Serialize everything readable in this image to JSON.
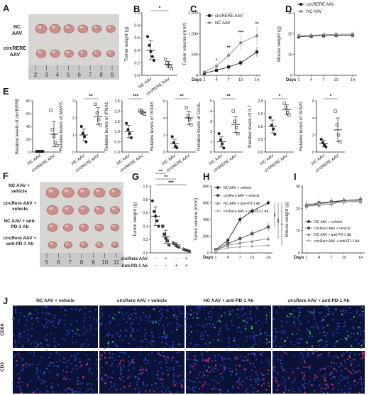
{
  "panels": {
    "A": {
      "letter": "A",
      "rows": [
        "NC AAV",
        "circRERE AAV"
      ],
      "ruler": [
        "2",
        "3",
        "4",
        "5",
        "6",
        "7",
        "8",
        "9"
      ]
    },
    "F": {
      "letter": "F",
      "rows": [
        "NC AAV + vehicle",
        "circRere AAV + vehicle",
        "NC AAV + anti-PD-1 Ab",
        "circRere AAV + anti-PD-1 Ab"
      ],
      "ruler": [
        "5",
        "6",
        "7",
        "8",
        "9",
        "10",
        "11"
      ]
    },
    "J": {
      "letter": "J",
      "columns": [
        "NC AAV + vehicle",
        "circRere AAV + vehicle",
        "NC AAV + anti-PD-1 Ab",
        "circRere AAV + anti-PD-1 Ab"
      ],
      "rows": [
        "CD8A",
        "CD3"
      ]
    }
  },
  "chart_data": [
    {
      "id": "B",
      "letter": "B",
      "type": "scatter",
      "ylabel": "Tumor weight (g)",
      "categories": [
        "NC AAV",
        "circRERE AAV"
      ],
      "ylim": [
        0,
        1.0
      ],
      "yticks": [
        "0.0",
        "0.2",
        "0.4",
        "0.6",
        "0.8",
        "1.0"
      ],
      "points": [
        [
          0.62,
          0.48,
          0.38,
          0.3,
          0.24
        ],
        [
          0.26,
          0.2,
          0.16,
          0.14,
          0.11
        ]
      ],
      "means": [
        0.4,
        0.17
      ],
      "sd": [
        0.15,
        0.05
      ],
      "sig": "*"
    },
    {
      "id": "C",
      "letter": "C",
      "type": "line",
      "ylabel": "Tumor volume (mm³)",
      "xlabel": "Days",
      "x": [
        1,
        4,
        7,
        10,
        14
      ],
      "xticks": [
        "1",
        "4",
        "7",
        "10",
        "14"
      ],
      "ylim": [
        0,
        1500
      ],
      "yticks": [
        "0",
        "500",
        "1,000",
        "1,500"
      ],
      "series": [
        {
          "name": "circRERE AAV",
          "values": [
            50,
            120,
            200,
            300,
            560
          ],
          "err": [
            20,
            40,
            60,
            80,
            120
          ],
          "marker": "square",
          "color": "#222222"
        },
        {
          "name": "NC AAV",
          "values": [
            80,
            220,
            480,
            780,
            950
          ],
          "err": [
            30,
            70,
            120,
            180,
            220
          ],
          "marker": "circle",
          "color": "#888888"
        }
      ],
      "sig": [
        "*",
        "**",
        "***",
        "**"
      ]
    },
    {
      "id": "D",
      "letter": "D",
      "type": "line",
      "ylabel": "Mouse weight (g)",
      "xlabel": "Days",
      "x": [
        1,
        4,
        7,
        10,
        14
      ],
      "xticks": [
        "1",
        "4",
        "7",
        "10",
        "14"
      ],
      "ylim": [
        0,
        30
      ],
      "yticks": [
        "0",
        "10",
        "20",
        "30"
      ],
      "series": [
        {
          "name": "circRERE AAV",
          "values": [
            18.5,
            18.8,
            19.0,
            19.2,
            19.3
          ],
          "err": [
            1.2,
            1.2,
            1.2,
            1.2,
            1.2
          ],
          "marker": "square",
          "color": "#222222"
        },
        {
          "name": "NC AAV",
          "values": [
            19.0,
            19.2,
            19.5,
            19.7,
            19.8
          ],
          "err": [
            1.2,
            1.2,
            1.2,
            1.2,
            1.2
          ],
          "marker": "circle",
          "color": "#888888"
        }
      ]
    },
    {
      "id": "E1",
      "letter": "E",
      "type": "scatter",
      "ylabel": "Relative levels of circRERE",
      "categories": [
        "NC AAV",
        "circRERE AAV"
      ],
      "ylim": [
        0,
        80
      ],
      "yticks": [
        "0",
        "20",
        "40",
        "60",
        "80"
      ],
      "points": [
        [
          1,
          1,
          1,
          1,
          1
        ],
        [
          65,
          35,
          25,
          15,
          10
        ]
      ],
      "means": [
        1,
        28
      ],
      "sd": [
        0.2,
        20
      ],
      "sig": ""
    },
    {
      "id": "E2",
      "type": "scatter",
      "ylabel": "Relative levels of MAVS",
      "categories": [
        "NC AAV",
        "circRERE AAV"
      ],
      "ylim": [
        0,
        3
      ],
      "yticks": [
        "0",
        "1",
        "2",
        "3"
      ],
      "points": [
        [
          1.5,
          1.1,
          0.9,
          0.6
        ],
        [
          2.8,
          2.3,
          1.9,
          1.6
        ]
      ],
      "means": [
        1.0,
        2.1
      ],
      "sd": [
        0.35,
        0.5
      ],
      "sig": "**"
    },
    {
      "id": "E3",
      "type": "scatter",
      "ylabel": "Relative levels of IFNA1",
      "categories": [
        "NC AAV",
        "circRERE AAV"
      ],
      "ylim": [
        0,
        2.5
      ],
      "yticks": [
        "0.0",
        "0.5",
        "1.0",
        "1.5",
        "2.0",
        "2.5"
      ],
      "points": [
        [
          1.4,
          1.1,
          0.9,
          0.7
        ],
        [
          2.05,
          1.95,
          1.9,
          1.85
        ]
      ],
      "means": [
        1.0,
        1.95
      ],
      "sd": [
        0.3,
        0.1
      ],
      "sig": "***"
    },
    {
      "id": "E4",
      "type": "scatter",
      "ylabel": "Relative levels of ISG15",
      "categories": [
        "NC AAV",
        "circRERE AAV"
      ],
      "ylim": [
        0,
        6
      ],
      "yticks": [
        "0",
        "2",
        "4",
        "6"
      ],
      "points": [
        [
          1.8,
          1.1,
          0.7,
          0.5
        ],
        [
          5.2,
          4.2,
          3.8,
          3.2
        ]
      ],
      "means": [
        1.0,
        4.0
      ],
      "sd": [
        0.5,
        0.8
      ],
      "sig": "**"
    },
    {
      "id": "E5",
      "type": "scatter",
      "ylabel": "Relative levels of OASL",
      "categories": [
        "NC AAV",
        "circRERE AAV"
      ],
      "ylim": [
        0,
        5
      ],
      "yticks": [
        "0",
        "1",
        "2",
        "3",
        "4",
        "5"
      ],
      "points": [
        [
          1.8,
          1.2,
          0.8,
          0.4
        ],
        [
          4.0,
          3.0,
          2.4,
          1.8
        ]
      ],
      "means": [
        1.0,
        2.7
      ],
      "sd": [
        0.5,
        0.8
      ],
      "sig": "**"
    },
    {
      "id": "E6",
      "type": "scatter",
      "ylabel": "Relative levels of IL7",
      "categories": [
        "NC AAV",
        "circRERE AAV"
      ],
      "ylim": [
        0,
        2.0
      ],
      "yticks": [
        "0.0",
        "0.5",
        "1.0",
        "1.5",
        "2.0"
      ],
      "points": [
        [
          1.35,
          1.05,
          0.9,
          0.7
        ],
        [
          1.9,
          1.75,
          1.55,
          1.45
        ]
      ],
      "means": [
        1.0,
        1.65
      ],
      "sd": [
        0.25,
        0.2
      ],
      "sig": "*"
    },
    {
      "id": "E7",
      "type": "scatter",
      "ylabel": "Relative levels of ISG20",
      "categories": [
        "NC AAV",
        "circRERE AAV"
      ],
      "ylim": [
        0,
        6
      ],
      "yticks": [
        "0",
        "2",
        "4",
        "6"
      ],
      "points": [
        [
          1.5,
          1.1,
          0.8,
          0.6
        ],
        [
          4.8,
          3.2,
          2.0,
          1.2
        ]
      ],
      "means": [
        1.0,
        2.6
      ],
      "sd": [
        0.4,
        1.4
      ],
      "sig": "*"
    },
    {
      "id": "G",
      "letter": "G",
      "type": "scatter",
      "ylabel": "Tumor weight (g)",
      "ylim": [
        0,
        1.0
      ],
      "yticks": [
        "0.0",
        "0.2",
        "0.4",
        "0.6",
        "0.8",
        "1.0"
      ],
      "row_labels": [
        "circRere AAV",
        "Anti-PD-1 Ab"
      ],
      "row_values": [
        [
          "-",
          "+",
          "-",
          "+"
        ],
        [
          "-",
          "-",
          "+",
          "+"
        ]
      ],
      "points": [
        [
          0.78,
          0.62,
          0.55,
          0.48,
          0.4
        ],
        [
          0.4,
          0.28,
          0.22,
          0.18,
          0.12
        ],
        [
          0.16,
          0.14,
          0.12,
          0.1,
          0.09
        ],
        [
          0.06,
          0.05,
          0.04,
          0.03,
          0.02
        ]
      ],
      "means": [
        0.55,
        0.24,
        0.12,
        0.04
      ],
      "sd": [
        0.14,
        0.1,
        0.03,
        0.015
      ],
      "sig": [
        "**",
        "**",
        "***"
      ]
    },
    {
      "id": "H",
      "letter": "H",
      "type": "line",
      "ylabel": "Tumor volume (mm³)",
      "xlabel": "Days",
      "x": [
        1,
        4,
        7,
        10,
        14
      ],
      "xticks": [
        "1",
        "4",
        "7",
        "10",
        "14"
      ],
      "ylim": [
        0,
        800
      ],
      "yticks": [
        "0",
        "200",
        "400",
        "600",
        "800"
      ],
      "series": [
        {
          "name": "NC AAV + vehicle",
          "values": [
            40,
            150,
            400,
            500,
            600
          ],
          "err": [
            10,
            30,
            50,
            40,
            30
          ],
          "marker": "circle",
          "color": "#222222"
        },
        {
          "name": "circRere AAV + vehicle",
          "values": [
            35,
            110,
            170,
            230,
            310
          ],
          "err": [
            10,
            20,
            30,
            40,
            60
          ],
          "marker": "square",
          "color": "#555555"
        },
        {
          "name": "NC AAV + anti-PD-1 Ab",
          "values": [
            30,
            90,
            120,
            140,
            170
          ],
          "err": [
            8,
            15,
            20,
            25,
            30
          ],
          "marker": "triangle",
          "color": "#888888"
        },
        {
          "name": "circRere AAV + anti-PD-1 Ab",
          "values": [
            25,
            60,
            70,
            80,
            90
          ],
          "err": [
            6,
            10,
            12,
            15,
            18
          ],
          "marker": "diamond",
          "color": "#aaaaaa"
        }
      ],
      "sig": [
        "**",
        "***",
        "*"
      ]
    },
    {
      "id": "I",
      "letter": "I",
      "type": "line",
      "ylabel": "Mouse weight (g)",
      "xlabel": "Days",
      "x": [
        1,
        4,
        7,
        10,
        14
      ],
      "xticks": [
        "1",
        "4",
        "7",
        "10",
        "14"
      ],
      "ylim": [
        0,
        30
      ],
      "yticks": [
        "0",
        "10",
        "20",
        "30"
      ],
      "series": [
        {
          "name": "NC AAV + vehicle",
          "values": [
            21,
            22,
            23,
            23.5,
            24
          ],
          "err": [
            1.5,
            1.5,
            1.5,
            1.5,
            1.5
          ],
          "marker": "circle",
          "color": "#222222"
        },
        {
          "name": "circRere AAV + vehicle",
          "values": [
            21.5,
            22.5,
            23,
            23,
            23.5
          ],
          "err": [
            1.5,
            1.5,
            1.5,
            1.5,
            1.5
          ],
          "marker": "square",
          "color": "#555555"
        },
        {
          "name": "NC AAV + anti-PD-1 Ab",
          "values": [
            21,
            21.5,
            22,
            23,
            23
          ],
          "err": [
            1.5,
            1.5,
            1.5,
            1.5,
            1.5
          ],
          "marker": "triangle",
          "color": "#888888"
        },
        {
          "name": "circRere AAV + anti-PD-1 Ab",
          "values": [
            22,
            22,
            22.5,
            23,
            23.5
          ],
          "err": [
            1.5,
            1.5,
            1.5,
            1.5,
            1.5
          ],
          "marker": "diamond",
          "color": "#aaaaaa"
        }
      ]
    }
  ]
}
